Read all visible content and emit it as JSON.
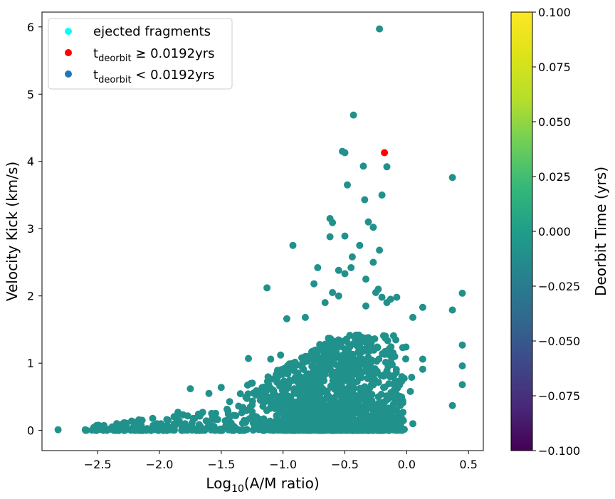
{
  "chart_data": {
    "type": "scatter",
    "xlabel": "Log",
    "xlabel_sub": "10",
    "xlabel_rest": "(A/M ratio)",
    "ylabel": "Velocity Kick (km/s)",
    "xlim": [
      -2.95,
      0.62
    ],
    "ylim": [
      -0.3,
      6.22
    ],
    "x_ticks": [
      -2.5,
      -2.0,
      -1.5,
      -1.0,
      -0.5,
      0.0,
      0.5
    ],
    "x_tick_labels": [
      "−2.5",
      "−2.0",
      "−1.5",
      "−1.0",
      "−0.5",
      "0.0",
      "0.5"
    ],
    "y_ticks": [
      0,
      1,
      2,
      3,
      4,
      5,
      6
    ],
    "y_tick_labels": [
      "0",
      "1",
      "2",
      "3",
      "4",
      "5",
      "6"
    ],
    "grid": false,
    "legend_position": "top-left",
    "legend": [
      {
        "text": "ejected fragments",
        "color": "#00ffff"
      },
      {
        "main": "t",
        "sub": "deorbit",
        "rest": " ≥  0.0192yrs",
        "color": "#ff0000"
      },
      {
        "main": "t",
        "sub": "deorbit",
        "rest": " < 0.0192yrs",
        "color": "#1f77b4"
      }
    ],
    "colorbar": {
      "label": "Deorbit Time (yrs)",
      "range": [
        -0.1,
        0.1
      ],
      "ticks": [
        0.1,
        0.075,
        0.05,
        0.025,
        0.0,
        -0.025,
        -0.05,
        -0.075,
        -0.1
      ],
      "tick_labels": [
        "0.100",
        "0.075",
        "0.050",
        "0.025",
        "0.000",
        "−0.025",
        "−0.050",
        "−0.075",
        "−0.100"
      ],
      "colormap": "viridis"
    },
    "point_color": "#21918c",
    "red_points": [
      {
        "x": -0.18,
        "y": 4.13
      }
    ],
    "outlier_points": [
      [
        -2.82,
        0.01
      ],
      [
        -0.22,
        5.97
      ],
      [
        -0.43,
        4.69
      ],
      [
        -0.52,
        4.15
      ],
      [
        -0.5,
        4.13
      ],
      [
        -0.2,
        3.5
      ],
      [
        -0.35,
        3.93
      ],
      [
        -0.16,
        3.92
      ],
      [
        0.37,
        3.76
      ],
      [
        -0.48,
        3.65
      ],
      [
        -0.34,
        3.43
      ],
      [
        -0.62,
        3.15
      ],
      [
        -0.6,
        3.09
      ],
      [
        -0.31,
        3.1
      ],
      [
        -0.27,
        3.02
      ],
      [
        -0.5,
        2.89
      ],
      [
        -0.62,
        2.88
      ],
      [
        -0.92,
        2.75
      ],
      [
        -0.38,
        2.75
      ],
      [
        -0.22,
        2.68
      ],
      [
        -0.44,
        2.58
      ],
      [
        -0.72,
        2.42
      ],
      [
        -0.45,
        2.42
      ],
      [
        -0.55,
        2.38
      ],
      [
        -0.5,
        2.33
      ],
      [
        -0.33,
        2.25
      ],
      [
        -0.27,
        2.5
      ],
      [
        -0.75,
        2.18
      ],
      [
        -1.13,
        2.12
      ],
      [
        -0.25,
        2.05
      ],
      [
        -0.33,
        1.85
      ],
      [
        0.45,
        2.04
      ],
      [
        -0.13,
        1.95
      ],
      [
        -0.08,
        1.98
      ],
      [
        -0.16,
        1.9
      ],
      [
        -0.2,
        1.98
      ],
      [
        -0.23,
        2.1
      ],
      [
        0.13,
        1.83
      ],
      [
        0.37,
        1.79
      ],
      [
        -0.97,
        1.66
      ],
      [
        0.05,
        1.68
      ],
      [
        -0.82,
        1.68
      ],
      [
        -0.6,
        2.05
      ],
      [
        -0.55,
        2.0
      ],
      [
        -0.66,
        1.9
      ],
      [
        0.45,
        1.27
      ],
      [
        0.45,
        0.96
      ],
      [
        0.45,
        0.68
      ],
      [
        0.37,
        0.37
      ],
      [
        0.13,
        1.06
      ],
      [
        0.13,
        0.91
      ],
      [
        0.04,
        0.79
      ],
      [
        0.03,
        0.58
      ],
      [
        0.05,
        0.1
      ],
      [
        -1.75,
        0.62
      ],
      [
        -1.6,
        0.55
      ],
      [
        -1.5,
        0.64
      ],
      [
        -1.28,
        1.07
      ],
      [
        -1.1,
        1.06
      ],
      [
        -1.02,
        1.12
      ],
      [
        -1.85,
        0.27
      ],
      [
        -2.02,
        0.1
      ],
      [
        -2.4,
        0.02
      ],
      [
        -2.6,
        0.01
      ],
      [
        -2.2,
        0.03
      ]
    ]
  }
}
